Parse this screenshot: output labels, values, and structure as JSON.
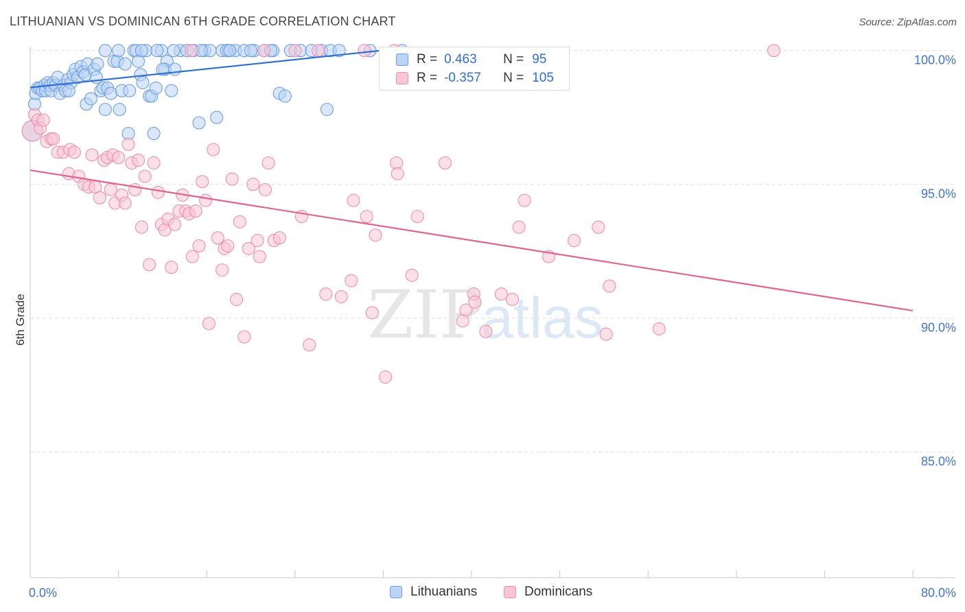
{
  "title": "LITHUANIAN VS DOMINICAN 6TH GRADE CORRELATION CHART",
  "source": "Source: ZipAtlas.com",
  "watermark": {
    "zip": "ZIP",
    "atlas": "atlas"
  },
  "legend": {
    "rows": [
      {
        "r_label": "R =",
        "r_value": "0.463",
        "n_label": "N =",
        "n_value": "95"
      },
      {
        "r_label": "R =",
        "r_value": "-0.357",
        "n_label": "N =",
        "n_value": "105"
      }
    ]
  },
  "bottom_legend": [
    "Lithuanians",
    "Dominicans"
  ],
  "colors": {
    "blue": "#6a9ee6",
    "blue_fill": "#bcd4f5",
    "blue_line": "#2f6fd0",
    "pink": "#ee8eab",
    "pink_fill": "#f9c6d4",
    "pink_line": "#e0638d",
    "axis_label": "#3f76c9"
  },
  "chart_data": {
    "type": "scatter",
    "title": "LITHUANIAN VS DOMINICAN 6TH GRADE CORRELATION CHART",
    "xlabel": "",
    "ylabel": "6th Grade",
    "xlim": [
      0,
      80
    ],
    "ylim": [
      80.3,
      100.3
    ],
    "x_tick_labels": [
      "0.0%",
      "80.0%"
    ],
    "y_ticks": [
      85,
      90,
      95,
      100
    ],
    "y_tick_labels": [
      "85.0%",
      "90.0%",
      "95.0%",
      "100.0%"
    ],
    "series": [
      {
        "name": "Lithuanians",
        "trend": {
          "x": [
            0,
            31.8
          ],
          "y": [
            98.62,
            100.0
          ]
        },
        "points": [
          [
            0.2,
            97.0
          ],
          [
            0.4,
            98.0
          ],
          [
            0.5,
            98.4
          ],
          [
            0.7,
            98.6
          ],
          [
            0.9,
            98.6
          ],
          [
            1.1,
            98.5
          ],
          [
            1.3,
            98.7
          ],
          [
            1.4,
            98.5
          ],
          [
            1.6,
            98.8
          ],
          [
            1.8,
            98.7
          ],
          [
            1.9,
            98.5
          ],
          [
            2.1,
            98.8
          ],
          [
            2.3,
            98.7
          ],
          [
            2.5,
            99.0
          ],
          [
            2.7,
            98.4
          ],
          [
            3.0,
            98.7
          ],
          [
            3.2,
            98.5
          ],
          [
            3.4,
            98.9
          ],
          [
            3.7,
            98.8
          ],
          [
            3.9,
            99.1
          ],
          [
            4.1,
            99.3
          ],
          [
            4.3,
            99.0
          ],
          [
            4.6,
            99.4
          ],
          [
            4.8,
            99.2
          ],
          [
            5.0,
            99.1
          ],
          [
            5.2,
            99.5
          ],
          [
            5.1,
            98.0
          ],
          [
            5.5,
            98.2
          ],
          [
            5.8,
            99.3
          ],
          [
            6.0,
            99.0
          ],
          [
            6.1,
            99.5
          ],
          [
            6.4,
            98.5
          ],
          [
            6.6,
            98.6
          ],
          [
            6.8,
            97.8
          ],
          [
            7.0,
            98.6
          ],
          [
            7.3,
            98.4
          ],
          [
            7.6,
            99.6
          ],
          [
            7.9,
            99.6
          ],
          [
            8.1,
            97.8
          ],
          [
            8.3,
            98.5
          ],
          [
            8.6,
            99.5
          ],
          [
            8.9,
            96.9
          ],
          [
            9.0,
            98.5
          ],
          [
            9.4,
            100.0
          ],
          [
            9.6,
            100.0
          ],
          [
            9.8,
            99.6
          ],
          [
            10.0,
            99.1
          ],
          [
            10.2,
            98.8
          ],
          [
            10.5,
            100.0
          ],
          [
            10.8,
            98.3
          ],
          [
            11.0,
            98.3
          ],
          [
            11.4,
            98.6
          ],
          [
            11.2,
            96.9
          ],
          [
            11.9,
            100.0
          ],
          [
            12.4,
            99.6
          ],
          [
            12.2,
            99.3
          ],
          [
            12.8,
            98.5
          ],
          [
            13.1,
            99.3
          ],
          [
            13.6,
            100.0
          ],
          [
            14.2,
            100.0
          ],
          [
            14.8,
            100.0
          ],
          [
            15.3,
            97.3
          ],
          [
            15.8,
            100.0
          ],
          [
            16.3,
            100.0
          ],
          [
            16.9,
            97.5
          ],
          [
            17.4,
            100.0
          ],
          [
            18.0,
            100.0
          ],
          [
            18.6,
            100.0
          ],
          [
            19.4,
            100.0
          ],
          [
            20.3,
            100.0
          ],
          [
            21.2,
            100.0
          ],
          [
            22.0,
            100.0
          ],
          [
            22.6,
            98.4
          ],
          [
            23.1,
            98.3
          ],
          [
            23.6,
            100.0
          ],
          [
            24.5,
            100.0
          ],
          [
            25.5,
            100.0
          ],
          [
            26.4,
            100.0
          ],
          [
            27.2,
            100.0
          ],
          [
            26.9,
            97.8
          ],
          [
            28.0,
            100.0
          ],
          [
            30.8,
            100.0
          ],
          [
            33.7,
            100.0
          ],
          [
            10.1,
            100.0
          ],
          [
            15.5,
            100.0
          ],
          [
            11.5,
            100.0
          ],
          [
            20.0,
            100.0
          ],
          [
            17.8,
            100.0
          ],
          [
            8.0,
            100.0
          ],
          [
            13.0,
            100.0
          ],
          [
            21.8,
            100.0
          ],
          [
            6.8,
            100.0
          ],
          [
            18.1,
            100.0
          ],
          [
            12.0,
            99.3
          ],
          [
            3.5,
            98.5
          ]
        ]
      },
      {
        "name": "Dominicans",
        "trend": {
          "x": [
            0,
            80
          ],
          "y": [
            95.53,
            90.28
          ]
        },
        "points": [
          [
            0.2,
            97.0
          ],
          [
            0.4,
            97.6
          ],
          [
            0.7,
            97.4
          ],
          [
            0.9,
            97.1
          ],
          [
            1.2,
            97.4
          ],
          [
            1.5,
            96.6
          ],
          [
            1.9,
            96.7
          ],
          [
            2.1,
            96.7
          ],
          [
            2.5,
            96.2
          ],
          [
            3.0,
            96.2
          ],
          [
            3.6,
            96.3
          ],
          [
            3.5,
            95.4
          ],
          [
            4.0,
            96.2
          ],
          [
            4.4,
            95.3
          ],
          [
            4.9,
            95.0
          ],
          [
            5.3,
            94.9
          ],
          [
            5.6,
            96.1
          ],
          [
            5.9,
            94.9
          ],
          [
            6.3,
            94.5
          ],
          [
            6.7,
            95.9
          ],
          [
            7.0,
            96.0
          ],
          [
            7.3,
            94.8
          ],
          [
            7.5,
            96.1
          ],
          [
            7.7,
            94.3
          ],
          [
            8.0,
            96.0
          ],
          [
            8.3,
            94.6
          ],
          [
            8.6,
            94.3
          ],
          [
            8.9,
            96.5
          ],
          [
            9.2,
            95.8
          ],
          [
            9.5,
            94.8
          ],
          [
            9.8,
            95.9
          ],
          [
            10.1,
            93.4
          ],
          [
            10.4,
            95.3
          ],
          [
            10.8,
            92.0
          ],
          [
            11.2,
            95.8
          ],
          [
            11.6,
            94.7
          ],
          [
            11.9,
            93.5
          ],
          [
            12.2,
            93.3
          ],
          [
            12.5,
            93.7
          ],
          [
            12.8,
            91.9
          ],
          [
            13.1,
            93.5
          ],
          [
            13.5,
            94.0
          ],
          [
            13.8,
            94.6
          ],
          [
            14.1,
            94.0
          ],
          [
            14.4,
            93.9
          ],
          [
            14.7,
            92.3
          ],
          [
            15.0,
            94.0
          ],
          [
            15.3,
            92.7
          ],
          [
            15.6,
            95.1
          ],
          [
            15.9,
            94.4
          ],
          [
            16.2,
            89.8
          ],
          [
            16.6,
            96.3
          ],
          [
            17.0,
            93.0
          ],
          [
            17.4,
            91.8
          ],
          [
            17.6,
            92.6
          ],
          [
            17.9,
            92.7
          ],
          [
            18.3,
            95.2
          ],
          [
            18.7,
            90.7
          ],
          [
            19.0,
            93.6
          ],
          [
            19.4,
            89.3
          ],
          [
            19.8,
            92.6
          ],
          [
            20.2,
            95.0
          ],
          [
            20.6,
            92.9
          ],
          [
            20.8,
            92.3
          ],
          [
            21.3,
            94.8
          ],
          [
            21.6,
            95.8
          ],
          [
            22.1,
            92.9
          ],
          [
            22.6,
            93.0
          ],
          [
            24.6,
            93.8
          ],
          [
            25.3,
            89.0
          ],
          [
            26.1,
            100.0
          ],
          [
            26.8,
            90.9
          ],
          [
            28.2,
            90.8
          ],
          [
            29.1,
            91.4
          ],
          [
            29.3,
            94.4
          ],
          [
            30.5,
            93.8
          ],
          [
            31.0,
            90.2
          ],
          [
            31.3,
            93.1
          ],
          [
            32.2,
            87.8
          ],
          [
            33.2,
            95.8
          ],
          [
            33.3,
            95.4
          ],
          [
            34.6,
            91.6
          ],
          [
            35.1,
            93.8
          ],
          [
            37.6,
            95.8
          ],
          [
            39.2,
            89.9
          ],
          [
            39.5,
            90.3
          ],
          [
            40.2,
            90.9
          ],
          [
            40.3,
            90.6
          ],
          [
            41.3,
            89.5
          ],
          [
            42.7,
            90.9
          ],
          [
            43.7,
            90.7
          ],
          [
            44.3,
            93.4
          ],
          [
            44.8,
            94.4
          ],
          [
            47.0,
            92.3
          ],
          [
            49.3,
            92.9
          ],
          [
            51.5,
            93.4
          ],
          [
            52.2,
            89.4
          ],
          [
            52.5,
            91.2
          ],
          [
            57.0,
            89.6
          ],
          [
            67.4,
            100.0
          ],
          [
            24.0,
            100.0
          ],
          [
            30.3,
            100.0
          ],
          [
            33.0,
            100.0
          ],
          [
            21.2,
            100.0
          ],
          [
            14.6,
            100.0
          ]
        ]
      }
    ]
  }
}
